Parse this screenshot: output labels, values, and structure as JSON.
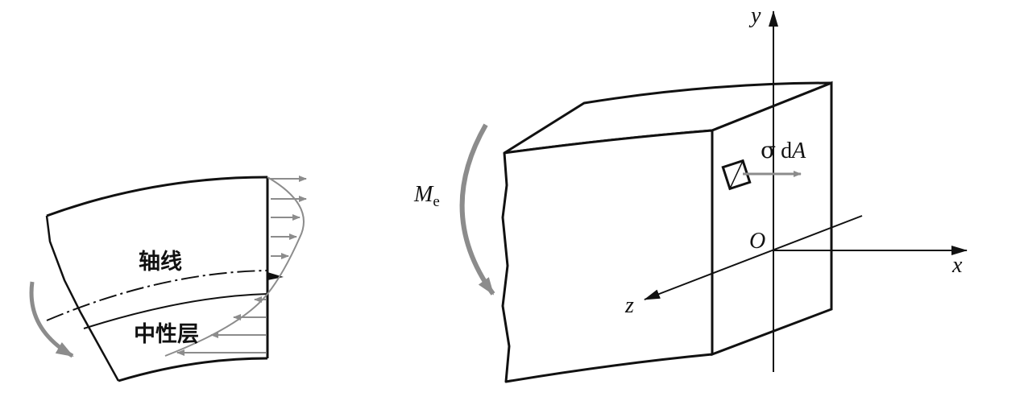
{
  "left_diagram": {
    "axis_label": "轴线",
    "neutral_layer_label": "中性层"
  },
  "right_diagram": {
    "moment_symbol": "M",
    "moment_subscript": "e",
    "stress_sigma": "σ",
    "stress_d": "d",
    "stress_A": "A",
    "axis_y": "y",
    "axis_x": "x",
    "axis_z": "z",
    "origin": "O"
  },
  "colors": {
    "line": "#111111",
    "arrow_gray": "#8c8c8c"
  }
}
